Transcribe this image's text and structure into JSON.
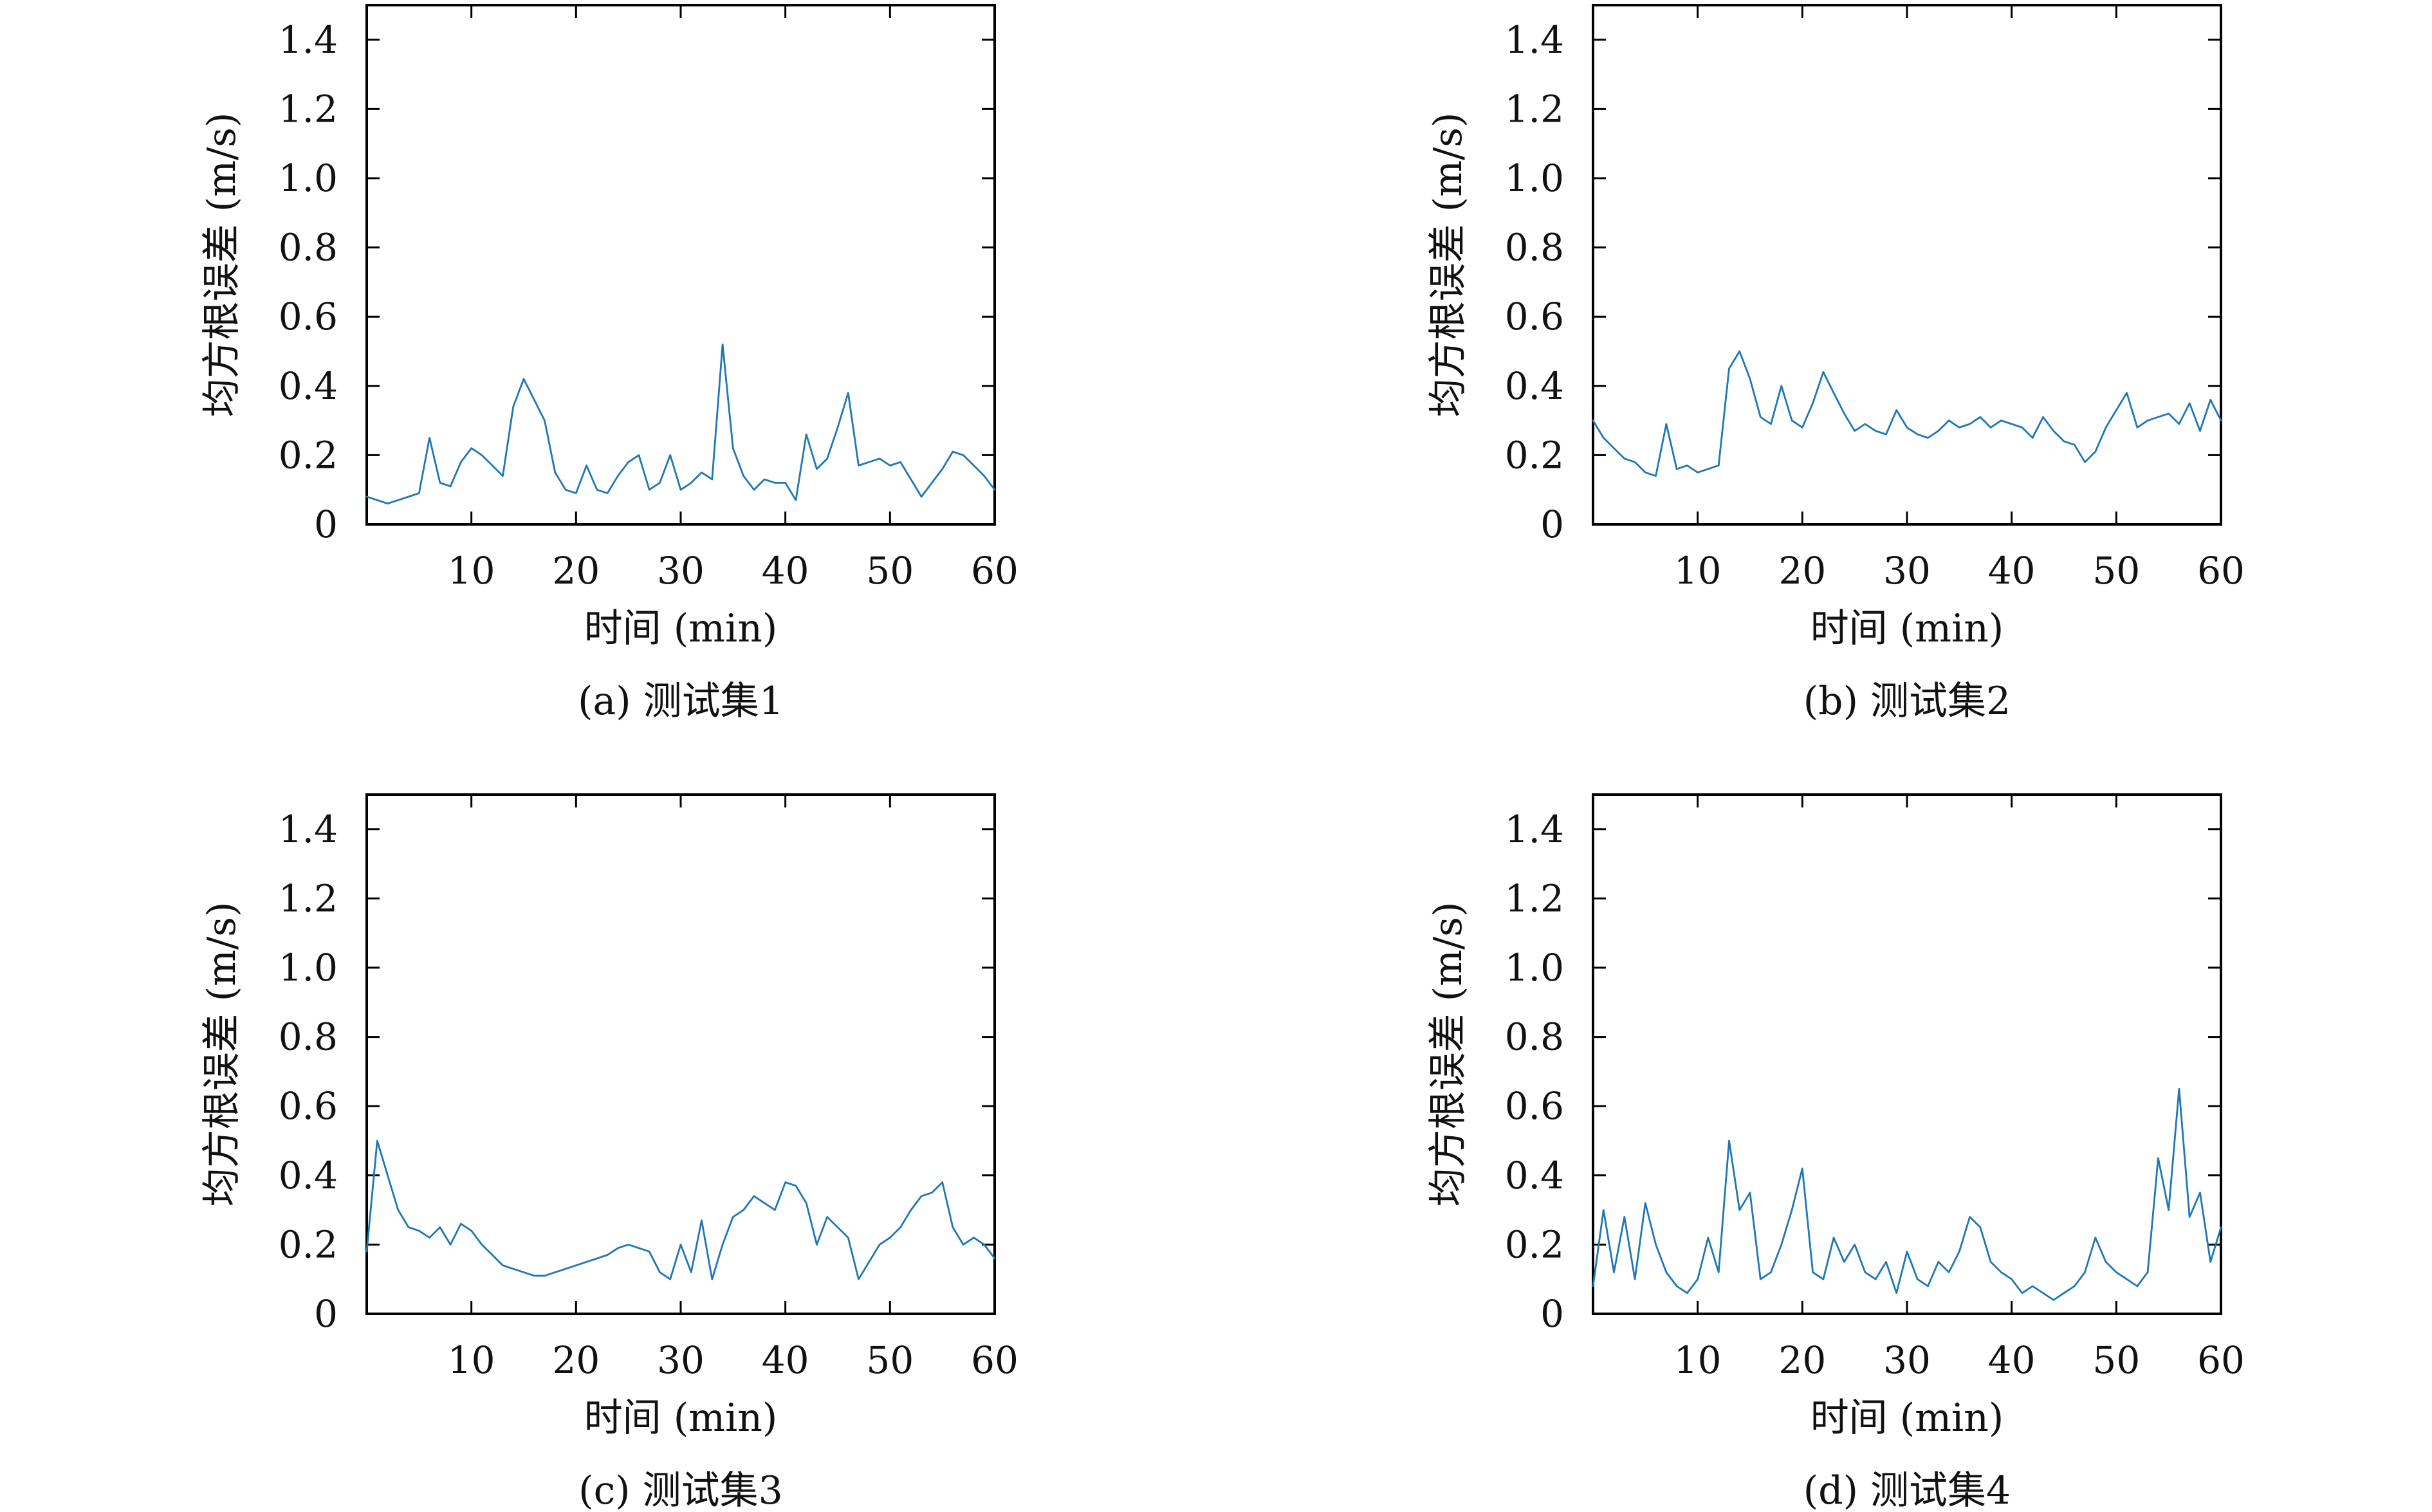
{
  "colors": {
    "series": "#1f77b4",
    "axes": "#000000",
    "background": "#ffffff"
  },
  "chart_data": [
    {
      "type": "line",
      "caption": "(a) 测试集1",
      "xlabel": "时间 (min)",
      "ylabel": "均方根误差 (m/s)",
      "xlim": [
        0,
        60
      ],
      "ylim": [
        0,
        1.5
      ],
      "xticks": [
        "10",
        "20",
        "30",
        "40",
        "50",
        "60"
      ],
      "yticks": [
        "0",
        "0.2",
        "0.4",
        "0.6",
        "0.8",
        "1.0",
        "1.2",
        "1.4"
      ],
      "grid": false,
      "series": [
        {
          "x": [
            0,
            1,
            2,
            3,
            4,
            5,
            6,
            7,
            8,
            9,
            10,
            11,
            12,
            13,
            14,
            15,
            16,
            17,
            18,
            19,
            20,
            21,
            22,
            23,
            24,
            25,
            26,
            27,
            28,
            29,
            30,
            31,
            32,
            33,
            34,
            35,
            36,
            37,
            38,
            39,
            40,
            41,
            42,
            43,
            44,
            45,
            46,
            47,
            48,
            49,
            50,
            51,
            52,
            53,
            54,
            55,
            56,
            57,
            58,
            59,
            60
          ],
          "y": [
            0.08,
            0.07,
            0.06,
            0.07,
            0.08,
            0.09,
            0.25,
            0.12,
            0.11,
            0.18,
            0.22,
            0.2,
            0.17,
            0.14,
            0.34,
            0.42,
            0.36,
            0.3,
            0.15,
            0.1,
            0.09,
            0.17,
            0.1,
            0.09,
            0.14,
            0.18,
            0.2,
            0.1,
            0.12,
            0.2,
            0.1,
            0.12,
            0.15,
            0.13,
            0.52,
            0.22,
            0.14,
            0.1,
            0.13,
            0.12,
            0.12,
            0.07,
            0.26,
            0.16,
            0.19,
            0.28,
            0.38,
            0.17,
            0.18,
            0.19,
            0.17,
            0.18,
            0.13,
            0.08,
            0.12,
            0.16,
            0.21,
            0.2,
            0.17,
            0.14,
            0.1
          ]
        }
      ]
    },
    {
      "type": "line",
      "caption": "(b) 测试集2",
      "xlabel": "时间 (min)",
      "ylabel": "均方根误差 (m/s)",
      "xlim": [
        0,
        60
      ],
      "ylim": [
        0,
        1.5
      ],
      "xticks": [
        "10",
        "20",
        "30",
        "40",
        "50",
        "60"
      ],
      "yticks": [
        "0",
        "0.2",
        "0.4",
        "0.6",
        "0.8",
        "1.0",
        "1.2",
        "1.4"
      ],
      "grid": false,
      "series": [
        {
          "x": [
            0,
            1,
            2,
            3,
            4,
            5,
            6,
            7,
            8,
            9,
            10,
            11,
            12,
            13,
            14,
            15,
            16,
            17,
            18,
            19,
            20,
            21,
            22,
            23,
            24,
            25,
            26,
            27,
            28,
            29,
            30,
            31,
            32,
            33,
            34,
            35,
            36,
            37,
            38,
            39,
            40,
            41,
            42,
            43,
            44,
            45,
            46,
            47,
            48,
            49,
            50,
            51,
            52,
            53,
            54,
            55,
            56,
            57,
            58,
            59,
            60
          ],
          "y": [
            0.3,
            0.25,
            0.22,
            0.19,
            0.18,
            0.15,
            0.14,
            0.29,
            0.16,
            0.17,
            0.15,
            0.16,
            0.17,
            0.45,
            0.5,
            0.42,
            0.31,
            0.29,
            0.4,
            0.3,
            0.28,
            0.35,
            0.44,
            0.38,
            0.32,
            0.27,
            0.29,
            0.27,
            0.26,
            0.33,
            0.28,
            0.26,
            0.25,
            0.27,
            0.3,
            0.28,
            0.29,
            0.31,
            0.28,
            0.3,
            0.29,
            0.28,
            0.25,
            0.31,
            0.27,
            0.24,
            0.23,
            0.18,
            0.21,
            0.28,
            0.33,
            0.38,
            0.28,
            0.3,
            0.31,
            0.32,
            0.29,
            0.35,
            0.27,
            0.36,
            0.3
          ]
        }
      ]
    },
    {
      "type": "line",
      "caption": "(c) 测试集3",
      "xlabel": "时间 (min)",
      "ylabel": "均方根误差 (m/s)",
      "xlim": [
        0,
        60
      ],
      "ylim": [
        0,
        1.5
      ],
      "xticks": [
        "10",
        "20",
        "30",
        "40",
        "50",
        "60"
      ],
      "yticks": [
        "0",
        "0.2",
        "0.4",
        "0.6",
        "0.8",
        "1.0",
        "1.2",
        "1.4"
      ],
      "grid": false,
      "series": [
        {
          "x": [
            0,
            1,
            2,
            3,
            4,
            5,
            6,
            7,
            8,
            9,
            10,
            11,
            12,
            13,
            14,
            15,
            16,
            17,
            18,
            19,
            20,
            21,
            22,
            23,
            24,
            25,
            26,
            27,
            28,
            29,
            30,
            31,
            32,
            33,
            34,
            35,
            36,
            37,
            38,
            39,
            40,
            41,
            42,
            43,
            44,
            45,
            46,
            47,
            48,
            49,
            50,
            51,
            52,
            53,
            54,
            55,
            56,
            57,
            58,
            59,
            60
          ],
          "y": [
            0.18,
            0.5,
            0.4,
            0.3,
            0.25,
            0.24,
            0.22,
            0.25,
            0.2,
            0.26,
            0.24,
            0.2,
            0.17,
            0.14,
            0.13,
            0.12,
            0.11,
            0.11,
            0.12,
            0.13,
            0.14,
            0.15,
            0.16,
            0.17,
            0.19,
            0.2,
            0.19,
            0.18,
            0.12,
            0.1,
            0.2,
            0.12,
            0.27,
            0.1,
            0.2,
            0.28,
            0.3,
            0.34,
            0.32,
            0.3,
            0.38,
            0.37,
            0.32,
            0.2,
            0.28,
            0.25,
            0.22,
            0.1,
            0.15,
            0.2,
            0.22,
            0.25,
            0.3,
            0.34,
            0.35,
            0.38,
            0.25,
            0.2,
            0.22,
            0.2,
            0.16
          ]
        }
      ]
    },
    {
      "type": "line",
      "caption": "(d) 测试集4",
      "xlabel": "时间 (min)",
      "ylabel": "均方根误差 (m/s)",
      "xlim": [
        0,
        60
      ],
      "ylim": [
        0,
        1.5
      ],
      "xticks": [
        "10",
        "20",
        "30",
        "40",
        "50",
        "60"
      ],
      "yticks": [
        "0",
        "0.2",
        "0.4",
        "0.6",
        "0.8",
        "1.0",
        "1.2",
        "1.4"
      ],
      "grid": false,
      "series": [
        {
          "x": [
            0,
            1,
            2,
            3,
            4,
            5,
            6,
            7,
            8,
            9,
            10,
            11,
            12,
            13,
            14,
            15,
            16,
            17,
            18,
            19,
            20,
            21,
            22,
            23,
            24,
            25,
            26,
            27,
            28,
            29,
            30,
            31,
            32,
            33,
            34,
            35,
            36,
            37,
            38,
            39,
            40,
            41,
            42,
            43,
            44,
            45,
            46,
            47,
            48,
            49,
            50,
            51,
            52,
            53,
            54,
            55,
            56,
            57,
            58,
            59,
            60
          ],
          "y": [
            0.08,
            0.3,
            0.12,
            0.28,
            0.1,
            0.32,
            0.2,
            0.12,
            0.08,
            0.06,
            0.1,
            0.22,
            0.12,
            0.5,
            0.3,
            0.35,
            0.1,
            0.12,
            0.2,
            0.3,
            0.42,
            0.12,
            0.1,
            0.22,
            0.15,
            0.2,
            0.12,
            0.1,
            0.15,
            0.06,
            0.18,
            0.1,
            0.08,
            0.15,
            0.12,
            0.18,
            0.28,
            0.25,
            0.15,
            0.12,
            0.1,
            0.06,
            0.08,
            0.06,
            0.04,
            0.06,
            0.08,
            0.12,
            0.22,
            0.15,
            0.12,
            0.1,
            0.08,
            0.12,
            0.45,
            0.3,
            0.65,
            0.28,
            0.35,
            0.15,
            0.25
          ]
        }
      ]
    }
  ]
}
